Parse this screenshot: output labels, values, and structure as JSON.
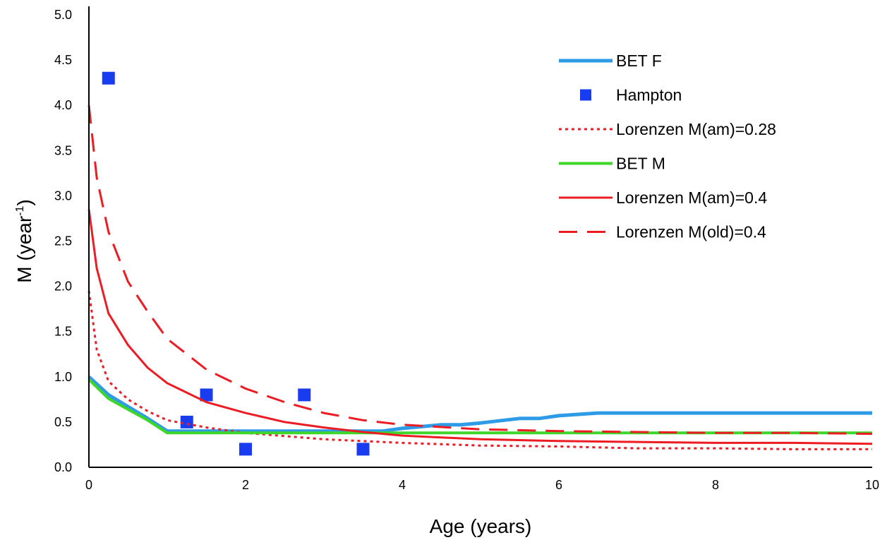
{
  "chart_data": {
    "type": "line",
    "title": "",
    "xlabel": "Age (years)",
    "ylabel": {
      "main": "M (year",
      "sup": "-1",
      "close": ")"
    },
    "xlim": [
      0,
      10
    ],
    "ylim": [
      0,
      5
    ],
    "xticks": [
      "0",
      "2",
      "4",
      "6",
      "8",
      "10"
    ],
    "yticks": [
      "0.0",
      "0.5",
      "1.0",
      "1.5",
      "2.0",
      "2.5",
      "3.0",
      "3.5",
      "4.0",
      "4.5",
      "5.0"
    ],
    "grid": false,
    "legend_position": "top-right",
    "series": [
      {
        "name": "BET F",
        "kind": "line",
        "color": "#2e9be6",
        "dash": "solid",
        "width": 5,
        "x": [
          0,
          0.25,
          0.5,
          0.75,
          1,
          1.25,
          1.5,
          2,
          2.5,
          3,
          3.5,
          3.75,
          4,
          4.5,
          4.75,
          5,
          5.5,
          5.75,
          6,
          6.5,
          7,
          8,
          9,
          10
        ],
        "y": [
          1.0,
          0.8,
          0.67,
          0.54,
          0.4,
          0.4,
          0.4,
          0.4,
          0.4,
          0.4,
          0.4,
          0.4,
          0.43,
          0.47,
          0.47,
          0.49,
          0.54,
          0.54,
          0.57,
          0.6,
          0.6,
          0.6,
          0.6,
          0.6
        ]
      },
      {
        "name": "Hampton",
        "kind": "marker",
        "color": "#1a3cf0",
        "x": [
          0.25,
          1.25,
          1.5,
          2,
          2.75,
          3.5
        ],
        "y": [
          4.3,
          0.5,
          0.8,
          0.2,
          0.8,
          0.2
        ]
      },
      {
        "name": "Lorenzen M(am)=0.28",
        "kind": "line",
        "color": "#ec1c24",
        "dash": "dot",
        "width": 3,
        "x": [
          0,
          0.1,
          0.25,
          0.5,
          0.75,
          1,
          1.5,
          2,
          3,
          4,
          5,
          6,
          7,
          8,
          9,
          10
        ],
        "y": [
          1.95,
          1.3,
          0.95,
          0.75,
          0.62,
          0.52,
          0.44,
          0.38,
          0.31,
          0.27,
          0.24,
          0.23,
          0.21,
          0.21,
          0.2,
          0.2
        ]
      },
      {
        "name": "BET M",
        "kind": "line",
        "color": "#3ed62a",
        "dash": "solid",
        "width": 4,
        "x": [
          0,
          0.25,
          0.5,
          0.75,
          1,
          1.5,
          2,
          3,
          4,
          5,
          6,
          7,
          8,
          9,
          10
        ],
        "y": [
          0.97,
          0.76,
          0.64,
          0.52,
          0.38,
          0.38,
          0.38,
          0.38,
          0.38,
          0.38,
          0.38,
          0.38,
          0.38,
          0.38,
          0.38
        ]
      },
      {
        "name": "Lorenzen M(am)=0.4",
        "kind": "line",
        "color": "#ec1c24",
        "dash": "solid",
        "width": 3,
        "x": [
          0,
          0.1,
          0.25,
          0.5,
          0.75,
          1,
          1.5,
          2,
          2.5,
          3,
          3.5,
          4,
          5,
          6,
          7,
          8,
          9,
          10
        ],
        "y": [
          2.85,
          2.2,
          1.7,
          1.35,
          1.1,
          0.93,
          0.72,
          0.6,
          0.5,
          0.44,
          0.39,
          0.35,
          0.31,
          0.29,
          0.28,
          0.27,
          0.27,
          0.26
        ]
      },
      {
        "name": "Lorenzen M(old)=0.4",
        "kind": "line",
        "color": "#ec1c24",
        "dash": "dash",
        "width": 3,
        "x": [
          0,
          0.1,
          0.25,
          0.5,
          0.75,
          1,
          1.5,
          2,
          2.5,
          3,
          3.5,
          4,
          5,
          6,
          7,
          8,
          9,
          10
        ],
        "y": [
          4.0,
          3.2,
          2.6,
          2.05,
          1.72,
          1.42,
          1.08,
          0.87,
          0.72,
          0.6,
          0.52,
          0.47,
          0.42,
          0.4,
          0.39,
          0.38,
          0.38,
          0.37
        ]
      }
    ]
  }
}
